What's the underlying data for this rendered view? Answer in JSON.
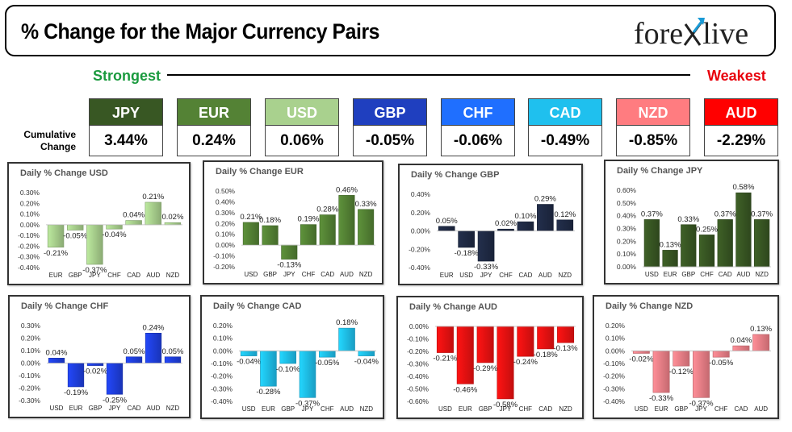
{
  "header": {
    "title": "% Change for the Major Currency Pairs",
    "logo": "forexlive",
    "strongest_label": "Strongest",
    "weakest_label": "Weakest",
    "cumulative_label": "Cumulative Change"
  },
  "currencies": [
    {
      "code": "JPY",
      "value": "3.44%",
      "color": "#385723"
    },
    {
      "code": "EUR",
      "value": "0.24%",
      "color": "#548235"
    },
    {
      "code": "USD",
      "value": "0.06%",
      "color": "#a9d18e"
    },
    {
      "code": "GBP",
      "value": "-0.05%",
      "color": "#1f3fbf"
    },
    {
      "code": "CHF",
      "value": "-0.06%",
      "color": "#1f6fff"
    },
    {
      "code": "CAD",
      "value": "-0.49%",
      "color": "#1fc0ee"
    },
    {
      "code": "NZD",
      "value": "-0.85%",
      "color": "#ff7c80"
    },
    {
      "code": "AUD",
      "value": "-2.29%",
      "color": "#ff0000"
    }
  ],
  "chart_data": [
    {
      "type": "bar",
      "title": "Daily % Change USD",
      "categories": [
        "EUR",
        "GBP",
        "JPY",
        "CHF",
        "CAD",
        "AUD",
        "NZD"
      ],
      "values": [
        -0.21,
        -0.05,
        -0.37,
        -0.04,
        0.04,
        0.21,
        0.02
      ],
      "labels": [
        "-0.21%",
        "-0.05%",
        "-0.37%",
        "-0.04%",
        "0.04%",
        "0.21%",
        "0.02%"
      ],
      "yticks": [
        "0.30%",
        "0.20%",
        "0.10%",
        "0.00%",
        "-0.10%",
        "-0.20%",
        "-0.30%",
        "-0.40%"
      ],
      "ylim": [
        -0.4,
        0.3
      ],
      "color": "#a9d18e"
    },
    {
      "type": "bar",
      "title": "Daily % Change EUR",
      "categories": [
        "USD",
        "GBP",
        "JPY",
        "CHF",
        "CAD",
        "AUD",
        "NZD"
      ],
      "values": [
        0.21,
        0.18,
        -0.13,
        0.19,
        0.28,
        0.46,
        0.33
      ],
      "labels": [
        "0.21%",
        "0.18%",
        "-0.13%",
        "0.19%",
        "0.28%",
        "0.46%",
        "0.33%"
      ],
      "yticks": [
        "0.50%",
        "0.40%",
        "0.30%",
        "0.20%",
        "0.10%",
        "0.00%",
        "-0.10%",
        "-0.20%"
      ],
      "ylim": [
        -0.2,
        0.5
      ],
      "color": "#548235"
    },
    {
      "type": "bar",
      "title": "Daily % Change GBP",
      "categories": [
        "EUR",
        "USD",
        "JPY",
        "CHF",
        "CAD",
        "AUD",
        "NZD"
      ],
      "values": [
        0.05,
        -0.18,
        -0.33,
        0.02,
        0.1,
        0.29,
        0.12
      ],
      "labels": [
        "0.05%",
        "-0.18%",
        "-0.33%",
        "0.02%",
        "0.10%",
        "0.29%",
        "0.12%"
      ],
      "yticks": [
        "0.40%",
        "0.20%",
        "0.00%",
        "-0.20%",
        "-0.40%"
      ],
      "ylim": [
        -0.4,
        0.4
      ],
      "color": "#1f2a44"
    },
    {
      "type": "bar",
      "title": "Daily % Change JPY",
      "categories": [
        "USD",
        "EUR",
        "GBP",
        "CHF",
        "CAD",
        "AUD",
        "NZD"
      ],
      "values": [
        0.37,
        0.13,
        0.33,
        0.25,
        0.37,
        0.58,
        0.37
      ],
      "labels": [
        "0.37%",
        "0.13%",
        "0.33%",
        "0.25%",
        "0.37%",
        "0.58%",
        "0.37%"
      ],
      "yticks": [
        "0.60%",
        "0.50%",
        "0.40%",
        "0.30%",
        "0.20%",
        "0.10%",
        "0.00%"
      ],
      "ylim": [
        0,
        0.6
      ],
      "color": "#385723"
    },
    {
      "type": "bar",
      "title": "Daily % Change CHF",
      "categories": [
        "USD",
        "EUR",
        "GBP",
        "JPY",
        "CAD",
        "AUD",
        "NZD"
      ],
      "values": [
        0.04,
        -0.19,
        -0.02,
        -0.25,
        0.05,
        0.24,
        0.05
      ],
      "labels": [
        "0.04%",
        "-0.19%",
        "-0.02%",
        "-0.25%",
        "0.05%",
        "0.24%",
        "0.05%"
      ],
      "yticks": [
        "0.30%",
        "0.20%",
        "0.10%",
        "0.00%",
        "-0.10%",
        "-0.20%",
        "-0.30%"
      ],
      "ylim": [
        -0.3,
        0.3
      ],
      "color": "#1f3fdf"
    },
    {
      "type": "bar",
      "title": "Daily % Change CAD",
      "categories": [
        "USD",
        "EUR",
        "GBP",
        "JPY",
        "CHF",
        "AUD",
        "NZD"
      ],
      "values": [
        -0.04,
        -0.28,
        -0.1,
        -0.37,
        -0.05,
        0.18,
        -0.04
      ],
      "labels": [
        "-0.04%",
        "-0.28%",
        "-0.10%",
        "-0.37%",
        "-0.05%",
        "0.18%",
        "-0.04%"
      ],
      "yticks": [
        "0.20%",
        "0.10%",
        "0.00%",
        "-0.10%",
        "-0.20%",
        "-0.30%",
        "-0.40%"
      ],
      "ylim": [
        -0.4,
        0.2
      ],
      "color": "#1fc0ee"
    },
    {
      "type": "bar",
      "title": "Daily % Change AUD",
      "categories": [
        "USD",
        "EUR",
        "GBP",
        "JPY",
        "CHF",
        "CAD",
        "NZD"
      ],
      "values": [
        -0.21,
        -0.46,
        -0.29,
        -0.58,
        -0.24,
        -0.18,
        -0.13
      ],
      "labels": [
        "-0.21%",
        "-0.46%",
        "-0.29%",
        "-0.58%",
        "-0.24%",
        "-0.18%",
        "-0.13%"
      ],
      "yticks": [
        "0.00%",
        "-0.10%",
        "-0.20%",
        "-0.30%",
        "-0.40%",
        "-0.50%",
        "-0.60%"
      ],
      "ylim": [
        -0.6,
        0
      ],
      "color": "#ee1111"
    },
    {
      "type": "bar",
      "title": "Daily % Change NZD",
      "categories": [
        "USD",
        "EUR",
        "GBP",
        "JPY",
        "CHF",
        "CAD",
        "AUD"
      ],
      "values": [
        -0.02,
        -0.33,
        -0.12,
        -0.37,
        -0.05,
        0.04,
        0.13
      ],
      "labels": [
        "-0.02%",
        "-0.33%",
        "-0.12%",
        "-0.37%",
        "-0.05%",
        "0.04%",
        "0.13%"
      ],
      "yticks": [
        "0.20%",
        "0.10%",
        "0.00%",
        "-0.10%",
        "-0.20%",
        "-0.30%",
        "-0.40%"
      ],
      "ylim": [
        -0.4,
        0.2
      ],
      "color": "#f08088"
    }
  ]
}
